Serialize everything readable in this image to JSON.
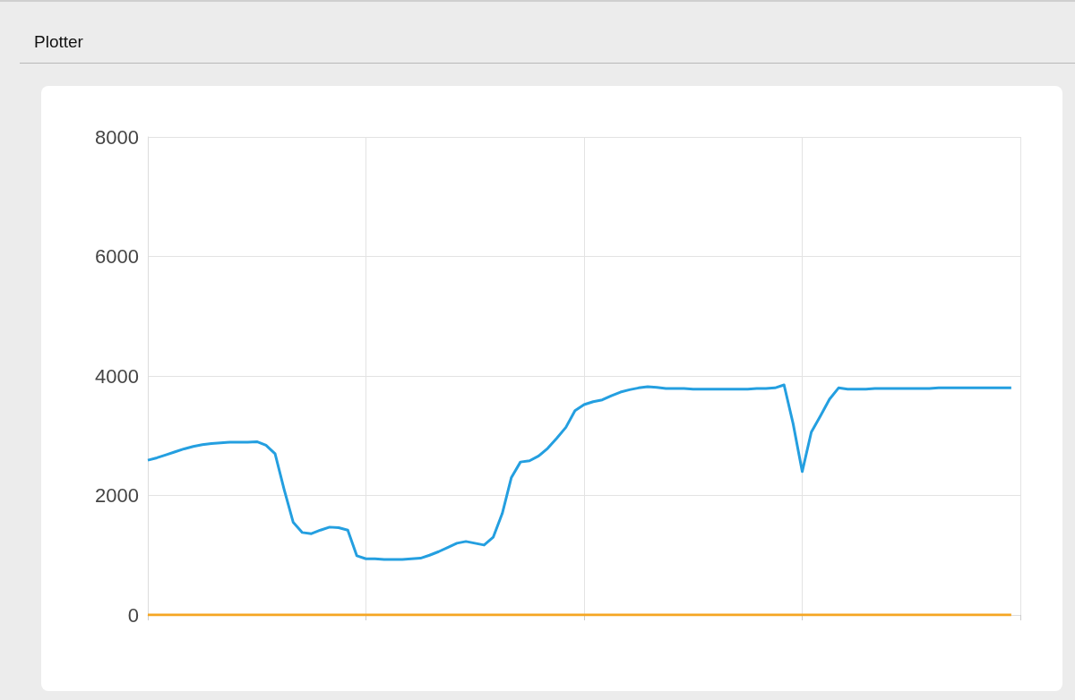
{
  "chart_data": {
    "type": "line",
    "title": "Plotter",
    "categories": [
      null,
      null,
      null,
      null,
      null,
      null,
      null,
      null,
      null,
      null,
      null,
      null,
      null,
      null,
      null,
      null,
      null,
      null,
      null,
      null,
      null,
      null,
      null,
      null,
      null,
      null,
      null,
      null,
      null,
      null,
      null,
      null,
      null,
      null,
      null,
      null,
      null,
      null,
      null,
      null,
      null,
      null,
      null,
      null,
      null,
      null,
      null,
      null,
      null,
      null,
      null,
      null,
      null,
      null,
      null,
      null,
      null,
      null,
      null,
      null,
      null,
      null,
      null,
      null,
      null,
      null,
      null,
      null,
      null,
      null,
      null,
      null,
      null,
      null,
      null,
      null,
      null,
      null,
      null,
      null,
      null,
      null,
      null,
      null,
      null,
      null,
      null,
      null,
      null,
      null,
      null,
      null,
      null,
      null,
      null,
      null,
      null
    ],
    "series": [
      {
        "color": "#249fe0",
        "values": [
          2590,
          2630,
          2680,
          2730,
          2780,
          2820,
          2850,
          2870,
          2880,
          2890,
          2890,
          2890,
          2900,
          2840,
          2700,
          2100,
          1550,
          1380,
          1360,
          1420,
          1470,
          1460,
          1420,
          990,
          940,
          940,
          930,
          930,
          930,
          940,
          950,
          1000,
          1060,
          1130,
          1200,
          1230,
          1200,
          1170,
          1300,
          1700,
          2300,
          2560,
          2580,
          2660,
          2790,
          2960,
          3140,
          3420,
          3520,
          3570,
          3600,
          3670,
          3730,
          3770,
          3800,
          3820,
          3810,
          3790,
          3790,
          3790,
          3780,
          3780,
          3780,
          3780,
          3780,
          3780,
          3780,
          3790,
          3790,
          3800,
          3850,
          3200,
          2400,
          3060,
          3330,
          3610,
          3800,
          3780,
          3780,
          3780,
          3790,
          3790,
          3790,
          3790,
          3790,
          3790,
          3790,
          3800,
          3800,
          3800,
          3800,
          3800,
          3800,
          3800,
          3800,
          3800,
          null
        ]
      },
      {
        "color": "#f5a623",
        "values": [
          0,
          0,
          0,
          0,
          0,
          0,
          0,
          0,
          0,
          0,
          0,
          0,
          0,
          0,
          0,
          0,
          0,
          0,
          0,
          0,
          0,
          0,
          0,
          0,
          0,
          0,
          0,
          0,
          0,
          0,
          0,
          0,
          0,
          0,
          0,
          0,
          0,
          0,
          0,
          0,
          0,
          0,
          0,
          0,
          0,
          0,
          0,
          0,
          0,
          0,
          0,
          0,
          0,
          0,
          0,
          0,
          0,
          0,
          0,
          0,
          0,
          0,
          0,
          0,
          0,
          0,
          0,
          0,
          0,
          0,
          0,
          0,
          0,
          0,
          0,
          0,
          0,
          0,
          0,
          0,
          0,
          0,
          0,
          0,
          0,
          0,
          0,
          0,
          0,
          0,
          0,
          0,
          0,
          0,
          0,
          0,
          null
        ]
      }
    ],
    "ylim": [
      0,
      8000
    ],
    "yticks": [
      0,
      2000,
      4000,
      6000,
      8000
    ],
    "grid": true,
    "tick_labels": "y",
    "marker": "none",
    "line_style": "solid"
  }
}
